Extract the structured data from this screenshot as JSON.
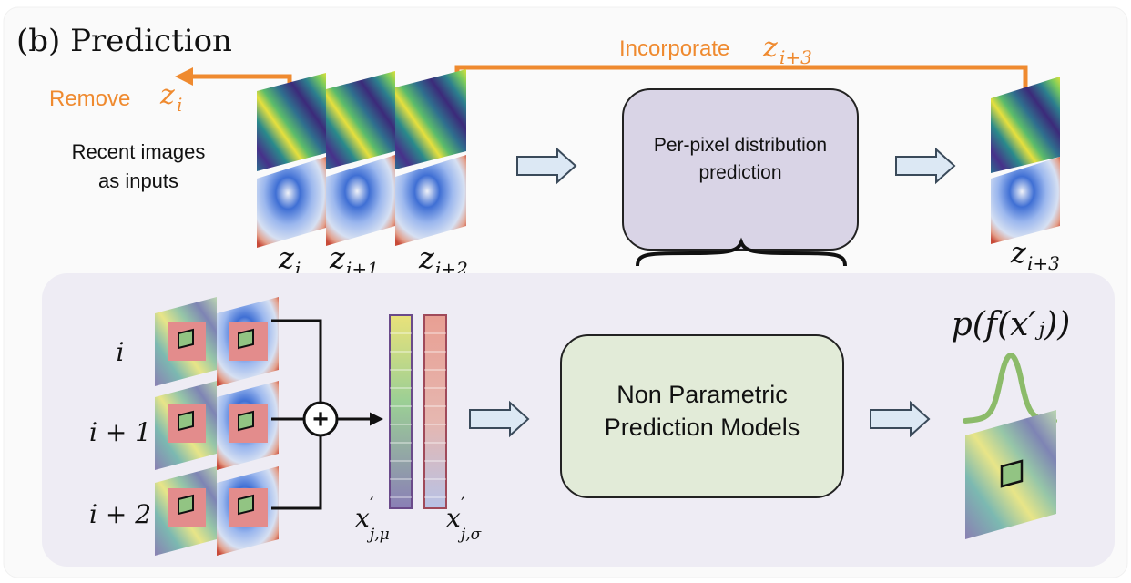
{
  "panel": {
    "title": "(b) Prediction",
    "remove_word": "Remove",
    "remove_var": "z",
    "remove_sub": "i",
    "incorporate_word": "Incorporate",
    "incorporate_var": "z",
    "incorporate_sub": "i+3",
    "inputs_label_line1": "Recent images",
    "inputs_label_line2": "as inputs",
    "frame_labels": [
      {
        "var": "z",
        "sub": "i"
      },
      {
        "var": "z",
        "sub": "i+1"
      },
      {
        "var": "z",
        "sub": "i+2"
      }
    ],
    "output_label": {
      "var": "z",
      "sub": "i+3"
    },
    "distribution_box_line1": "Per-pixel distribution",
    "distribution_box_line2": "prediction"
  },
  "detail": {
    "row_labels": [
      "i",
      "i + 1",
      "i + 2"
    ],
    "plus_symbol": "+",
    "mu_label": {
      "var": "x",
      "prime": "′",
      "sub": "j,μ"
    },
    "sigma_label": {
      "var": "x",
      "prime": "′",
      "sub": "j,σ"
    },
    "model_box_line1": "Non Parametric",
    "model_box_line2": "Prediction Models",
    "formula": "p(f(x′ⱼ))"
  },
  "colors": {
    "accent_orange": "#ef8a2f",
    "arrow_fill": "#dce8f4",
    "arrow_stroke": "#3a4a5a",
    "distribution_box": "#d9d4e6",
    "model_box": "#e2ebd8",
    "detail_panel": "#eeecf4",
    "curve_green": "#8cbb6a",
    "patch_fill": "#92c483",
    "patch_window": "#e38c8c"
  }
}
